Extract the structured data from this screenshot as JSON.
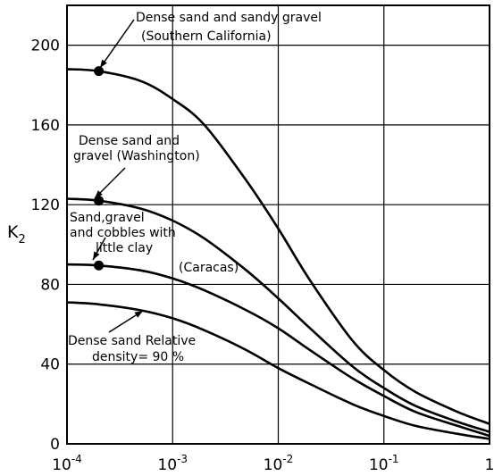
{
  "chart_data": {
    "type": "line",
    "xscale": "log",
    "xlim": [
      0.0001,
      1
    ],
    "ylim": [
      0,
      220
    ],
    "grid": true,
    "xlabel": "",
    "ylabel_main": "K",
    "ylabel_sub": "2",
    "x_ticks": [
      {
        "value": 0.0001,
        "base": "10",
        "exp": "-4"
      },
      {
        "value": 0.001,
        "base": "10",
        "exp": "-3"
      },
      {
        "value": 0.01,
        "base": "10",
        "exp": "-2"
      },
      {
        "value": 0.1,
        "base": "10",
        "exp": "-1"
      },
      {
        "value": 1,
        "base": "1",
        "exp": ""
      }
    ],
    "y_ticks": [
      0,
      40,
      80,
      120,
      160,
      200
    ],
    "series": [
      {
        "annotation": [
          "Dense sand and sandy gravel",
          "(Southern California)"
        ],
        "x": [
          0.0001,
          0.0002,
          0.0005,
          0.001,
          0.002,
          0.005,
          0.01,
          0.02,
          0.05,
          0.1,
          0.2,
          0.5,
          1
        ],
        "y": [
          188,
          187,
          182,
          173,
          160,
          132,
          108,
          82,
          52,
          37,
          26,
          16,
          10
        ],
        "marker_x": 0.0002
      },
      {
        "annotation": [
          "Dense sand and",
          "gravel (Washington)"
        ],
        "x": [
          0.0001,
          0.0002,
          0.0005,
          0.001,
          0.002,
          0.005,
          0.01,
          0.02,
          0.05,
          0.1,
          0.2,
          0.5,
          1
        ],
        "y": [
          123,
          122,
          118,
          112,
          103,
          87,
          73,
          58,
          39,
          28,
          19,
          11,
          6
        ],
        "marker_x": 0.0002
      },
      {
        "annotation": [
          "Sand,gravel",
          "and cobbles with",
          "little clay",
          "(Caracas)"
        ],
        "x": [
          0.0001,
          0.0002,
          0.0005,
          0.001,
          0.002,
          0.005,
          0.01,
          0.02,
          0.05,
          0.1,
          0.2,
          0.5,
          1
        ],
        "y": [
          90,
          89.5,
          87,
          83,
          77,
          67,
          58,
          47,
          33,
          24,
          16,
          9,
          4
        ],
        "marker_x": 0.0002
      },
      {
        "annotation": [
          "Dense sand Relative",
          "density= 90 %"
        ],
        "x": [
          0.0001,
          0.0002,
          0.0005,
          0.001,
          0.002,
          0.005,
          0.01,
          0.02,
          0.05,
          0.1,
          0.2,
          0.5,
          1
        ],
        "y": [
          71,
          70,
          67,
          63,
          57,
          47,
          38,
          30,
          20,
          14,
          9,
          5,
          2.5
        ],
        "marker_x": null
      }
    ]
  }
}
